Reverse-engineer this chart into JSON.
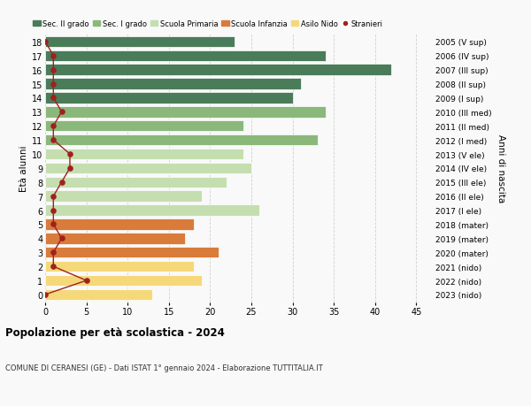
{
  "ages": [
    18,
    17,
    16,
    15,
    14,
    13,
    12,
    11,
    10,
    9,
    8,
    7,
    6,
    5,
    4,
    3,
    2,
    1,
    0
  ],
  "years_labels": [
    "2005 (V sup)",
    "2006 (IV sup)",
    "2007 (III sup)",
    "2008 (II sup)",
    "2009 (I sup)",
    "2010 (III med)",
    "2011 (II med)",
    "2012 (I med)",
    "2013 (V ele)",
    "2014 (IV ele)",
    "2015 (III ele)",
    "2016 (II ele)",
    "2017 (I ele)",
    "2018 (mater)",
    "2019 (mater)",
    "2020 (mater)",
    "2021 (nido)",
    "2022 (nido)",
    "2023 (nido)"
  ],
  "bar_values": [
    23,
    34,
    42,
    31,
    30,
    34,
    24,
    33,
    24,
    25,
    22,
    19,
    26,
    18,
    17,
    21,
    18,
    19,
    13
  ],
  "bar_colors": [
    "#4a7c59",
    "#4a7c59",
    "#4a7c59",
    "#4a7c59",
    "#4a7c59",
    "#8ab87a",
    "#8ab87a",
    "#8ab87a",
    "#c5deb0",
    "#c5deb0",
    "#c5deb0",
    "#c5deb0",
    "#c5deb0",
    "#d97b3a",
    "#d97b3a",
    "#d97b3a",
    "#f5d87a",
    "#f5d87a",
    "#f5d87a"
  ],
  "stranieri_values": [
    0,
    1,
    1,
    1,
    1,
    2,
    1,
    1,
    3,
    3,
    2,
    1,
    1,
    1,
    2,
    1,
    1,
    5,
    0
  ],
  "legend_labels": [
    "Sec. II grado",
    "Sec. I grado",
    "Scuola Primaria",
    "Scuola Infanzia",
    "Asilo Nido",
    "Stranieri"
  ],
  "legend_colors": [
    "#4a7c59",
    "#8ab87a",
    "#c5deb0",
    "#d97b3a",
    "#f5d87a",
    "#c0392b"
  ],
  "title": "Popolazione per età scolastica - 2024",
  "subtitle": "COMUNE DI CERANESI (GE) - Dati ISTAT 1° gennaio 2024 - Elaborazione TUTTITALIA.IT",
  "ylabel_left": "Età alunni",
  "ylabel_right": "Anni di nascita",
  "xlim": [
    0,
    47
  ],
  "background_color": "#f9f9f9",
  "grid_color": "#d0d0d0",
  "stranieri_color": "#a02020",
  "bar_height": 0.78
}
